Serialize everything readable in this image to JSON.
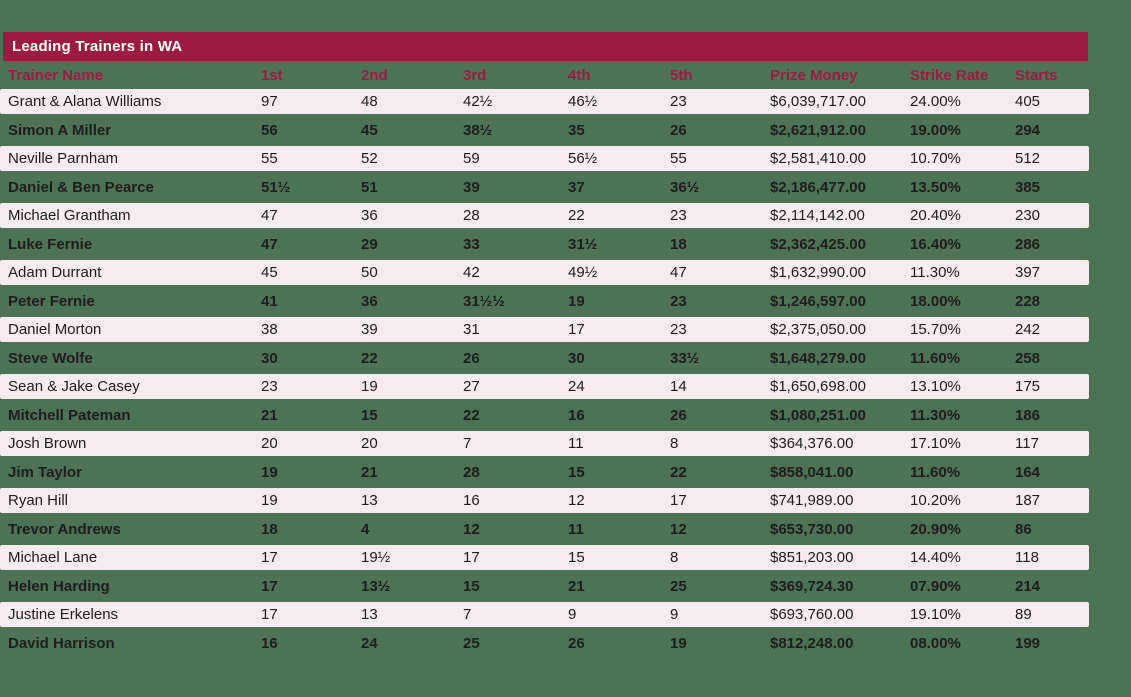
{
  "colors": {
    "page_background": "#4d7355",
    "title_bar": "#9c1b40",
    "title_text": "#ffffff",
    "header_text": "#9c1b40",
    "row_alt_background": "#f6ecf0",
    "row_text": "#1d1d1b"
  },
  "chart_data": {
    "type": "table",
    "title": "Leading Trainers in WA",
    "columns": [
      "Trainer Name",
      "1st",
      "2nd",
      "3rd",
      "4th",
      "5th",
      "Prize Money",
      "Strike Rate",
      "Starts"
    ],
    "rows": [
      [
        "Grant & Alana Williams",
        "97",
        "48",
        "42½",
        "46½",
        "23",
        "$6,039,717.00",
        "24.00%",
        "405"
      ],
      [
        "Simon A Miller",
        "56",
        "45",
        "38½",
        "35",
        "26",
        "$2,621,912.00",
        "19.00%",
        "294"
      ],
      [
        "Neville Parnham",
        "55",
        "52",
        "59",
        "56½",
        "55",
        "$2,581,410.00",
        "10.70%",
        "512"
      ],
      [
        "Daniel & Ben Pearce",
        "51½",
        "51",
        "39",
        "37",
        "36½",
        "$2,186,477.00",
        "13.50%",
        "385"
      ],
      [
        "Michael Grantham",
        "47",
        "36",
        "28",
        "22",
        "23",
        "$2,114,142.00",
        "20.40%",
        "230"
      ],
      [
        "Luke Fernie",
        "47",
        "29",
        "33",
        "31½",
        "18",
        "$2,362,425.00",
        "16.40%",
        "286"
      ],
      [
        "Adam Durrant",
        "45",
        "50",
        "42",
        "49½",
        "47",
        "$1,632,990.00",
        "11.30%",
        "397"
      ],
      [
        "Peter Fernie",
        "41",
        "36",
        "31½½",
        "19",
        "23",
        "$1,246,597.00",
        "18.00%",
        "228"
      ],
      [
        "Daniel Morton",
        "38",
        "39",
        "31",
        "17",
        "23",
        "$2,375,050.00",
        "15.70%",
        "242"
      ],
      [
        "Steve Wolfe",
        "30",
        "22",
        "26",
        "30",
        "33½",
        "$1,648,279.00",
        "11.60%",
        "258"
      ],
      [
        "Sean & Jake Casey",
        "23",
        "19",
        "27",
        "24",
        "14",
        "$1,650,698.00",
        "13.10%",
        "175"
      ],
      [
        "Mitchell Pateman",
        "21",
        "15",
        "22",
        "16",
        "26",
        "$1,080,251.00",
        "11.30%",
        "186"
      ],
      [
        "Josh Brown",
        "20",
        "20",
        "7",
        "11",
        "8",
        "$364,376.00",
        "17.10%",
        "117"
      ],
      [
        "Jim Taylor",
        "19",
        "21",
        "28",
        "15",
        "22",
        "$858,041.00",
        "11.60%",
        "164"
      ],
      [
        "Ryan Hill",
        "19",
        "13",
        "16",
        "12",
        "17",
        "$741,989.00",
        "10.20%",
        "187"
      ],
      [
        "Trevor Andrews",
        "18",
        "4",
        "12",
        "11",
        "12",
        "$653,730.00",
        "20.90%",
        "86"
      ],
      [
        "Michael Lane",
        "17",
        "19½",
        "17",
        "15",
        "8",
        "$851,203.00",
        "14.40%",
        "118"
      ],
      [
        "Helen Harding",
        "17",
        "13½",
        "15",
        "21",
        "25",
        "$369,724.30",
        "07.90%",
        "214"
      ],
      [
        "Justine Erkelens",
        "17",
        "13",
        "7",
        "9",
        "9",
        "$693,760.00",
        "19.10%",
        "89"
      ],
      [
        "David Harrison",
        "16",
        "24",
        "25",
        "26",
        "19",
        "$812,248.00",
        "08.00%",
        "199"
      ]
    ]
  }
}
